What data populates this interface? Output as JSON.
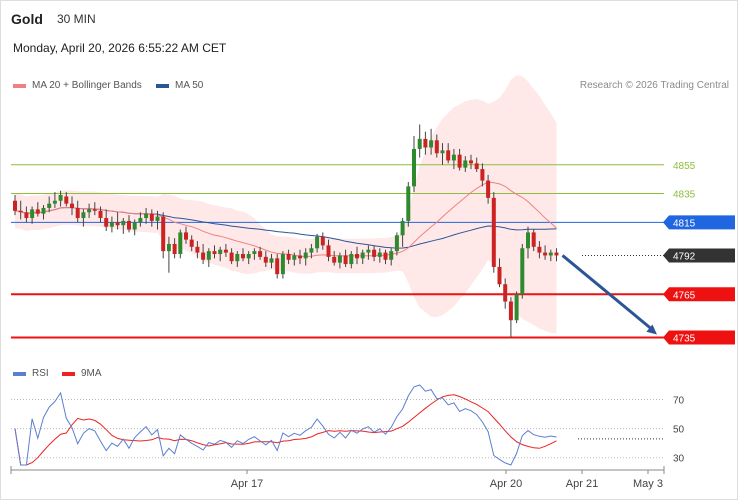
{
  "header": {
    "instrument": "Gold",
    "timeframe": "30 MIN",
    "datetime": "Monday, April 20, 2026 6:55:22 AM CET",
    "credit": "Research © 2026 Trading Central"
  },
  "legend": {
    "ma20": "MA 20 + Bollinger Bands",
    "ma50": "MA 50",
    "rsi": "RSI",
    "ma9": "9MA"
  },
  "colors": {
    "ma20": "#f08080",
    "bands_fill": "#fde0e0",
    "ma50": "#2c5596",
    "resistance": "#8dbd3c",
    "pivot": "#1f66e0",
    "support": "#ee1111",
    "last_price": "#333333",
    "candle_up": "#2f8a2f",
    "candle_down": "#cc2222",
    "arrow": "#2c5596",
    "rsi": "#5b7fd0",
    "rsi_ma9": "#ee2222"
  },
  "chart_data": [
    {
      "type": "candlestick",
      "title": "Gold",
      "timeframe": "30 MIN",
      "x_tick_labels": [
        "Apr 17",
        "Apr 20",
        "Apr 21",
        "May 3"
      ],
      "ylim": [
        4727,
        4900
      ],
      "levels": [
        {
          "value": 4855,
          "label": "4855",
          "kind": "resistance"
        },
        {
          "value": 4835,
          "label": "4835",
          "kind": "resistance"
        },
        {
          "value": 4815,
          "label": "4815",
          "kind": "pivot"
        },
        {
          "value": 4792,
          "label": "4792",
          "kind": "last"
        },
        {
          "value": 4765,
          "label": "4765",
          "kind": "support"
        },
        {
          "value": 4735,
          "label": "4735",
          "kind": "support"
        }
      ],
      "forecast_arrow": {
        "from": 4792,
        "to": 4735,
        "direction": "down"
      },
      "ohlc": [
        [
          4830,
          4834,
          4820,
          4823
        ],
        [
          4823,
          4830,
          4817,
          4822
        ],
        [
          4822,
          4826,
          4815,
          4818
        ],
        [
          4818,
          4826,
          4814,
          4824
        ],
        [
          4824,
          4829,
          4819,
          4821
        ],
        [
          4821,
          4827,
          4817,
          4825
        ],
        [
          4825,
          4833,
          4822,
          4828
        ],
        [
          4828,
          4836,
          4825,
          4830
        ],
        [
          4830,
          4837,
          4826,
          4834
        ],
        [
          4833,
          4836,
          4826,
          4828
        ],
        [
          4828,
          4833,
          4820,
          4825
        ],
        [
          4825,
          4830,
          4815,
          4818
        ],
        [
          4818,
          4824,
          4812,
          4822
        ],
        [
          4822,
          4828,
          4818,
          4824
        ],
        [
          4824,
          4829,
          4820,
          4823
        ],
        [
          4823,
          4826,
          4815,
          4818
        ],
        [
          4818,
          4824,
          4809,
          4812
        ],
        [
          4812,
          4819,
          4808,
          4815
        ],
        [
          4815,
          4822,
          4810,
          4813
        ],
        [
          4813,
          4818,
          4807,
          4816
        ],
        [
          4816,
          4820,
          4808,
          4810
        ],
        [
          4810,
          4817,
          4806,
          4815
        ],
        [
          4815,
          4822,
          4812,
          4818
        ],
        [
          4818,
          4825,
          4814,
          4821
        ],
        [
          4821,
          4824,
          4812,
          4816
        ],
        [
          4816,
          4823,
          4810,
          4819
        ],
        [
          4819,
          4822,
          4790,
          4795
        ],
        [
          4795,
          4805,
          4780,
          4800
        ],
        [
          4800,
          4804,
          4790,
          4793
        ],
        [
          4793,
          4810,
          4790,
          4808
        ],
        [
          4808,
          4812,
          4800,
          4803
        ],
        [
          4803,
          4806,
          4795,
          4798
        ],
        [
          4798,
          4802,
          4790,
          4794
        ],
        [
          4794,
          4800,
          4786,
          4789
        ],
        [
          4789,
          4797,
          4784,
          4795
        ],
        [
          4795,
          4799,
          4790,
          4793
        ],
        [
          4793,
          4798,
          4788,
          4796
        ],
        [
          4796,
          4800,
          4791,
          4794
        ],
        [
          4794,
          4797,
          4786,
          4788
        ],
        [
          4788,
          4795,
          4784,
          4793
        ],
        [
          4793,
          4797,
          4788,
          4790
        ],
        [
          4790,
          4795,
          4786,
          4793
        ],
        [
          4793,
          4797,
          4789,
          4795
        ],
        [
          4795,
          4798,
          4789,
          4791
        ],
        [
          4791,
          4795,
          4784,
          4787
        ],
        [
          4787,
          4793,
          4783,
          4790
        ],
        [
          4790,
          4793,
          4776,
          4779
        ],
        [
          4779,
          4795,
          4776,
          4793
        ],
        [
          4793,
          4796,
          4786,
          4789
        ],
        [
          4789,
          4794,
          4785,
          4792
        ],
        [
          4792,
          4796,
          4786,
          4790
        ],
        [
          4790,
          4797,
          4785,
          4794
        ],
        [
          4794,
          4800,
          4790,
          4797
        ],
        [
          4797,
          4807,
          4794,
          4805
        ],
        [
          4805,
          4808,
          4796,
          4799
        ],
        [
          4799,
          4803,
          4788,
          4791
        ],
        [
          4791,
          4795,
          4785,
          4787
        ],
        [
          4787,
          4794,
          4783,
          4792
        ],
        [
          4792,
          4796,
          4784,
          4786
        ],
        [
          4786,
          4795,
          4783,
          4793
        ],
        [
          4793,
          4798,
          4786,
          4790
        ],
        [
          4790,
          4796,
          4786,
          4794
        ],
        [
          4794,
          4799,
          4789,
          4796
        ],
        [
          4796,
          4799,
          4788,
          4791
        ],
        [
          4791,
          4797,
          4787,
          4794
        ],
        [
          4794,
          4796,
          4786,
          4789
        ],
        [
          4789,
          4797,
          4785,
          4795
        ],
        [
          4795,
          4808,
          4792,
          4806
        ],
        [
          4806,
          4818,
          4798,
          4816
        ],
        [
          4816,
          4843,
          4812,
          4840
        ],
        [
          4840,
          4875,
          4836,
          4866
        ],
        [
          4866,
          4883,
          4860,
          4873
        ],
        [
          4873,
          4878,
          4862,
          4867
        ],
        [
          4867,
          4880,
          4862,
          4872
        ],
        [
          4872,
          4876,
          4860,
          4863
        ],
        [
          4863,
          4870,
          4855,
          4865
        ],
        [
          4865,
          4870,
          4856,
          4858
        ],
        [
          4858,
          4866,
          4852,
          4862
        ],
        [
          4862,
          4866,
          4851,
          4853
        ],
        [
          4853,
          4861,
          4850,
          4858
        ],
        [
          4858,
          4862,
          4852,
          4856
        ],
        [
          4856,
          4860,
          4850,
          4852
        ],
        [
          4852,
          4856,
          4840,
          4844
        ],
        [
          4844,
          4848,
          4828,
          4832
        ],
        [
          4832,
          4836,
          4780,
          4784
        ],
        [
          4784,
          4790,
          4770,
          4772
        ],
        [
          4772,
          4776,
          4755,
          4760
        ],
        [
          4760,
          4763,
          4735,
          4747
        ],
        [
          4747,
          4767,
          4745,
          4765
        ],
        [
          4765,
          4800,
          4762,
          4797
        ],
        [
          4797,
          4812,
          4790,
          4808
        ],
        [
          4808,
          4810,
          4795,
          4798
        ],
        [
          4798,
          4802,
          4790,
          4794
        ],
        [
          4794,
          4799,
          4789,
          4792
        ],
        [
          4792,
          4796,
          4788,
          4794
        ],
        [
          4794,
          4797,
          4788,
          4792
        ]
      ]
    },
    {
      "type": "line",
      "title": "RSI",
      "series": [
        {
          "name": "RSI"
        },
        {
          "name": "9MA"
        }
      ],
      "ylim": [
        25,
        80
      ],
      "y_ticks": [
        70,
        50,
        30
      ],
      "reference_value": 43
    }
  ]
}
